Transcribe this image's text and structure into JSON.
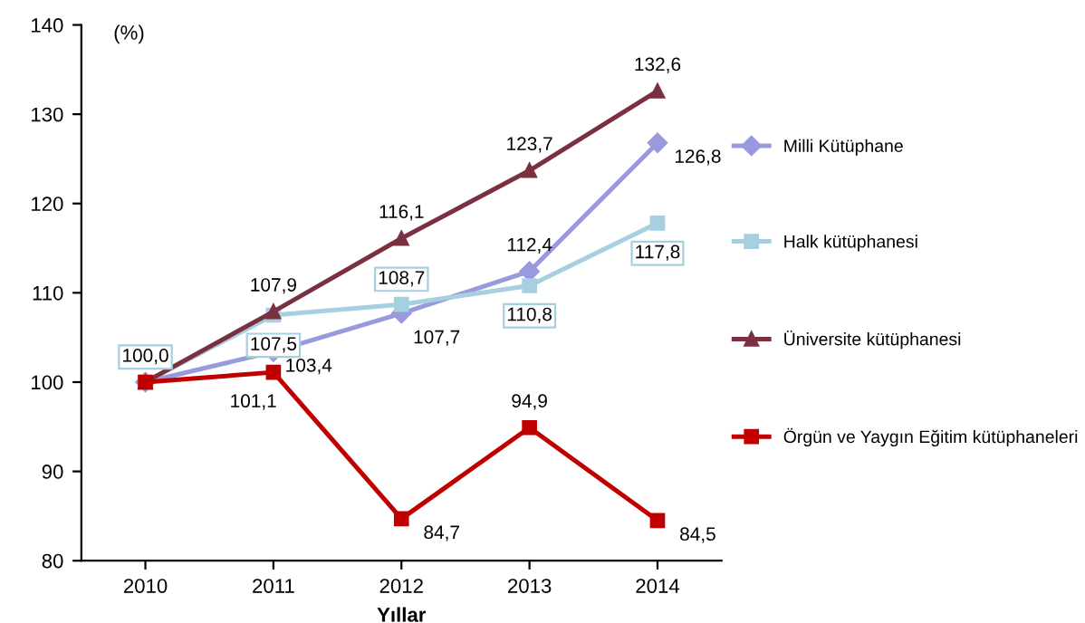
{
  "chart_data": {
    "type": "line",
    "xlabel": "Yıllar",
    "ylabel": "(%)",
    "categories": [
      "2010",
      "2011",
      "2012",
      "2013",
      "2014"
    ],
    "series": [
      {
        "name": "Milli Kütüphane",
        "color": "#9999dd",
        "marker": "diamond",
        "values": [
          100.0,
          103.4,
          107.7,
          112.4,
          126.8
        ],
        "value_labels": [
          null,
          "103,4",
          "107,7",
          "112,4",
          "126,8"
        ]
      },
      {
        "name": "Halk kütüphanesi",
        "color": "#a6cfe0",
        "marker": "square",
        "values": [
          100.0,
          107.5,
          108.7,
          110.8,
          117.8
        ],
        "value_labels": [
          "100,0",
          "107,5",
          "108,7",
          "110,8",
          "117,8"
        ]
      },
      {
        "name": "Üniversite kütüphanesi",
        "color": "#7b3040",
        "marker": "triangle",
        "values": [
          100.0,
          107.9,
          116.1,
          123.7,
          132.6
        ],
        "value_labels": [
          null,
          "107,9",
          "116,1",
          "123,7",
          "132,6"
        ]
      },
      {
        "name": "Örgün ve Yaygın Eğitim kütüphaneleri",
        "color": "#c00000",
        "marker": "square",
        "values": [
          100.0,
          101.1,
          84.7,
          94.9,
          84.5
        ],
        "value_labels": [
          null,
          "101,1",
          "84,7",
          "94,9",
          "84,5"
        ]
      }
    ],
    "ylim": [
      80,
      140
    ],
    "yticks": [
      80,
      90,
      100,
      110,
      120,
      130,
      140
    ],
    "grid": false,
    "legend": "right",
    "line_style": "solid"
  }
}
